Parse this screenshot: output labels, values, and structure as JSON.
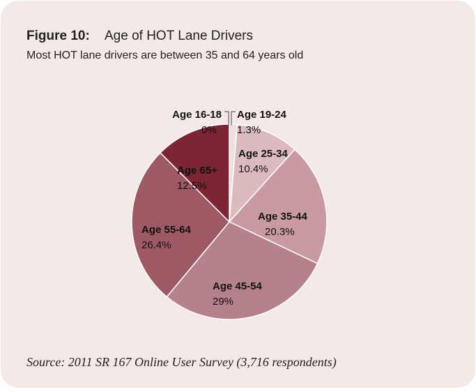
{
  "chart_data": {
    "type": "pie",
    "figure_label": "Figure 10:",
    "title": "Age of HOT Lane Drivers",
    "subtitle": "Most HOT lane drivers are between 35 and 64 years old",
    "categories": [
      "Age 16-18",
      "Age 19-24",
      "Age 25-34",
      "Age 35-44",
      "Age 45-54",
      "Age 55-64",
      "Age 65+"
    ],
    "values": [
      0,
      1.3,
      10.4,
      20.3,
      29,
      26.4,
      12.5
    ],
    "value_labels": [
      "0%",
      "1.3%",
      "10.4%",
      "20.3%",
      "29%",
      "26.4%",
      "12.5%"
    ],
    "colors": [
      "#f6eeee",
      "#efdfe1",
      "#dcbbbf",
      "#c99ba1",
      "#b5818a",
      "#9d5a65",
      "#7b2535"
    ],
    "source": "Source: 2011 SR 167 Online User Survey (3,716 respondents)"
  }
}
